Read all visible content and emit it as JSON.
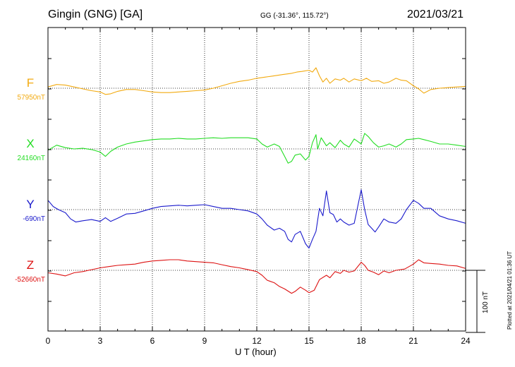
{
  "header": {
    "station": "Gingin (GNG)  [GA]",
    "coords": "GG (-31.36°, 115.72°)",
    "date": "2021/03/21"
  },
  "footer": {
    "plotted": "Plotted at 2021/04/21 01:36 UT",
    "scale_label": "100 nT"
  },
  "chart_data": {
    "type": "line",
    "xlabel": "U T (hour)",
    "xlim": [
      0,
      24
    ],
    "x_ticks": [
      "0",
      "3",
      "6",
      "9",
      "12",
      "15",
      "18",
      "21",
      "24"
    ],
    "grid": true,
    "scale_bar_nT": 100,
    "series": [
      {
        "name": "F",
        "baseline_label": "57950nT",
        "baseline": 57950,
        "color": "#f2aa10",
        "x": [
          0,
          0.5,
          1,
          1.5,
          2,
          2.5,
          3,
          3.3,
          3.6,
          4,
          4.5,
          5,
          5.5,
          6,
          6.5,
          7,
          7.5,
          8,
          8.5,
          9,
          9.5,
          10,
          10.5,
          11,
          11.5,
          12,
          12.5,
          13,
          13.5,
          14,
          14.3,
          14.6,
          15,
          15.2,
          15.4,
          15.6,
          15.8,
          16,
          16.2,
          16.5,
          16.8,
          17,
          17.3,
          17.6,
          18,
          18.3,
          18.6,
          19,
          19.3,
          19.6,
          20,
          20.3,
          20.6,
          21,
          21.3,
          21.6,
          22,
          22.5,
          23,
          23.5,
          24
        ],
        "y": [
          57952,
          57956,
          57955,
          57952,
          57949,
          57946,
          57944,
          57940,
          57941,
          57945,
          57948,
          57948,
          57946,
          57944,
          57943,
          57943,
          57944,
          57945,
          57946,
          57947,
          57950,
          57954,
          57958,
          57961,
          57963,
          57966,
          57968,
          57970,
          57972,
          57974,
          57976,
          57977,
          57979,
          57976,
          57983,
          57970,
          57960,
          57966,
          57958,
          57965,
          57963,
          57966,
          57960,
          57965,
          57962,
          57966,
          57961,
          57962,
          57958,
          57960,
          57966,
          57963,
          57962,
          57954,
          57949,
          57942,
          57948,
          57950,
          57951,
          57952,
          57953
        ]
      },
      {
        "name": "X",
        "baseline_label": "24160nT",
        "baseline": 24160,
        "color": "#22dd22",
        "x": [
          0,
          0.5,
          1,
          1.5,
          2,
          2.5,
          3,
          3.3,
          3.6,
          4,
          4.5,
          5,
          5.5,
          6,
          6.5,
          7,
          7.5,
          8,
          8.5,
          9,
          9.5,
          10,
          10.5,
          11,
          11.5,
          12,
          12.3,
          12.6,
          13,
          13.3,
          13.6,
          13.8,
          14,
          14.2,
          14.5,
          14.8,
          15,
          15.2,
          15.4,
          15.5,
          15.7,
          16,
          16.2,
          16.5,
          16.8,
          17,
          17.3,
          17.6,
          18,
          18.2,
          18.4,
          18.7,
          19,
          19.3,
          19.6,
          20,
          20.3,
          20.6,
          21,
          21.3,
          21.6,
          22,
          22.5,
          23,
          23.5,
          24
        ],
        "y": [
          24158,
          24166,
          24162,
          24160,
          24161,
          24159,
          24155,
          24148,
          24156,
          24163,
          24168,
          24171,
          24173,
          24175,
          24176,
          24176,
          24177,
          24176,
          24176,
          24177,
          24178,
          24177,
          24178,
          24178,
          24178,
          24176,
          24168,
          24163,
          24168,
          24164,
          24148,
          24137,
          24140,
          24150,
          24152,
          24142,
          24148,
          24170,
          24183,
          24160,
          24178,
          24165,
          24170,
          24162,
          24174,
          24168,
          24163,
          24176,
          24168,
          24185,
          24180,
          24170,
          24163,
          24165,
          24168,
          24163,
          24168,
          24175,
          24176,
          24177,
          24175,
          24172,
          24168,
          24168,
          24166,
          24164
        ]
      },
      {
        "name": "Y",
        "baseline_label": "-690nT",
        "baseline": -690,
        "color": "#1a1acc",
        "x": [
          0,
          0.3,
          0.6,
          1,
          1.3,
          1.6,
          2,
          2.5,
          3,
          3.3,
          3.6,
          4,
          4.5,
          5,
          5.5,
          6,
          6.5,
          7,
          7.5,
          8,
          8.5,
          9,
          9.5,
          10,
          10.5,
          11,
          11.5,
          12,
          12.3,
          12.6,
          13,
          13.3,
          13.6,
          13.8,
          14,
          14.2,
          14.5,
          14.8,
          15,
          15.2,
          15.4,
          15.6,
          15.8,
          16,
          16.2,
          16.4,
          16.6,
          16.8,
          17,
          17.3,
          17.6,
          18,
          18.2,
          18.4,
          18.6,
          18.8,
          19,
          19.3,
          19.6,
          20,
          20.3,
          20.6,
          21,
          21.3,
          21.6,
          22,
          22.5,
          23,
          23.5,
          24
        ],
        "y": [
          -675,
          -685,
          -690,
          -695,
          -705,
          -710,
          -708,
          -706,
          -709,
          -703,
          -709,
          -704,
          -697,
          -696,
          -692,
          -688,
          -685,
          -684,
          -683,
          -684,
          -683,
          -682,
          -685,
          -688,
          -688,
          -690,
          -692,
          -697,
          -705,
          -715,
          -723,
          -720,
          -725,
          -738,
          -742,
          -730,
          -725,
          -745,
          -752,
          -738,
          -725,
          -688,
          -700,
          -660,
          -695,
          -698,
          -710,
          -705,
          -710,
          -715,
          -712,
          -658,
          -690,
          -714,
          -720,
          -726,
          -718,
          -705,
          -710,
          -712,
          -705,
          -690,
          -675,
          -680,
          -688,
          -688,
          -700,
          -705,
          -708,
          -712
        ]
      },
      {
        "name": "Z",
        "baseline_label": "-52660nT",
        "baseline": -52660,
        "color": "#dd1111",
        "x": [
          0,
          0.5,
          1,
          1.5,
          2,
          2.5,
          3,
          3.5,
          4,
          4.5,
          5,
          5.5,
          6,
          6.5,
          7,
          7.5,
          8,
          8.5,
          9,
          9.5,
          10,
          10.5,
          11,
          11.5,
          12,
          12.3,
          12.6,
          13,
          13.3,
          13.6,
          14,
          14.2,
          14.5,
          14.8,
          15,
          15.3,
          15.6,
          16,
          16.2,
          16.5,
          16.8,
          17,
          17.3,
          17.6,
          18,
          18.2,
          18.4,
          18.7,
          19,
          19.3,
          19.6,
          20,
          20.5,
          21,
          21.3,
          21.6,
          22,
          22.5,
          23,
          23.5,
          24
        ],
        "y": [
          -52664,
          -52666,
          -52669,
          -52664,
          -52662,
          -52659,
          -52656,
          -52654,
          -52652,
          -52651,
          -52650,
          -52647,
          -52645,
          -52644,
          -52643,
          -52643,
          -52645,
          -52646,
          -52647,
          -52648,
          -52651,
          -52654,
          -52656,
          -52659,
          -52662,
          -52668,
          -52676,
          -52680,
          -52686,
          -52690,
          -52697,
          -52694,
          -52687,
          -52692,
          -52696,
          -52692,
          -52675,
          -52668,
          -52672,
          -52662,
          -52665,
          -52660,
          -52663,
          -52661,
          -52647,
          -52652,
          -52660,
          -52663,
          -52667,
          -52661,
          -52664,
          -52660,
          -52658,
          -52650,
          -52643,
          -52648,
          -52649,
          -52650,
          -52652,
          -52653,
          -52657
        ]
      }
    ]
  }
}
